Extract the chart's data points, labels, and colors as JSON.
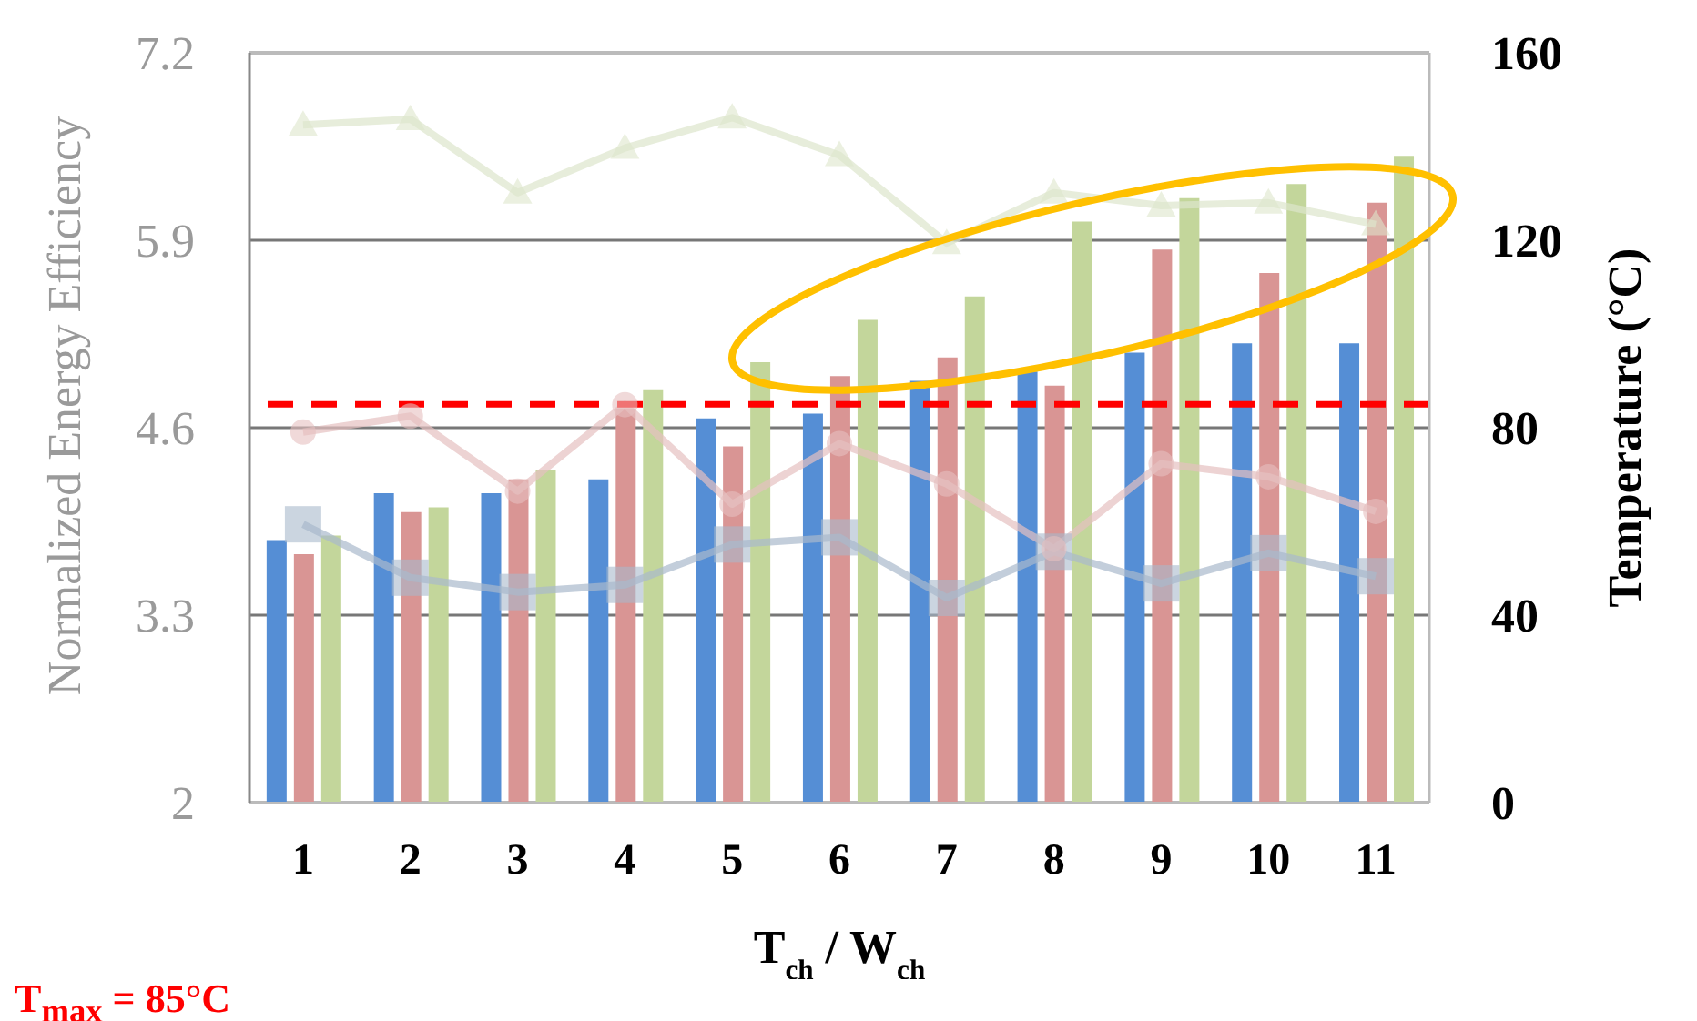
{
  "chart_data": {
    "type": "bar",
    "xlabel": "T$_{ch}$ / W$_{ch}$",
    "ylabel": "Normalized Energy Efficiency",
    "y2label": "Temperature (°C)",
    "categories": [
      "1",
      "2",
      "3",
      "4",
      "5",
      "6",
      "7",
      "8",
      "9",
      "10",
      "11"
    ],
    "series": [
      {
        "axis": "y2",
        "color": "#558ed5",
        "values": [
          56,
          66,
          66,
          69,
          82,
          83,
          90,
          92,
          96,
          98,
          98
        ]
      },
      {
        "axis": "y2",
        "color": "#d99594",
        "values": [
          53,
          62,
          69,
          84,
          76,
          91,
          95,
          89,
          118,
          113,
          128
        ]
      },
      {
        "axis": "y2",
        "color": "#c3d69b",
        "values": [
          57,
          63,
          71,
          88,
          94,
          103,
          108,
          124,
          129,
          132,
          138
        ]
      },
      {
        "type": "line",
        "axis": "y",
        "marker": "square",
        "color": "#a9b9cc",
        "values": [
          3.93,
          3.56,
          3.46,
          3.51,
          3.79,
          3.84,
          3.42,
          3.74,
          3.52,
          3.73,
          3.57
        ]
      },
      {
        "type": "line",
        "axis": "y",
        "marker": "circle",
        "color": "#e6c0c0",
        "values": [
          4.57,
          4.68,
          4.16,
          4.76,
          4.07,
          4.49,
          4.21,
          3.76,
          4.35,
          4.26,
          4.02
        ]
      },
      {
        "type": "line",
        "axis": "y",
        "marker": "triangle",
        "color": "#dde6cc",
        "values": [
          6.7,
          6.74,
          6.23,
          6.54,
          6.75,
          6.49,
          5.88,
          6.23,
          6.14,
          6.16,
          6.01
        ]
      }
    ],
    "ylim": [
      2,
      7.2
    ],
    "yticks": [
      2,
      3.3,
      4.6,
      5.9,
      7.2
    ],
    "y2lim": [
      0,
      160
    ],
    "y2ticks": [
      0,
      40,
      80,
      120,
      160
    ],
    "grid": "y",
    "ref_lines": [
      {
        "axis": "y2",
        "value": 85,
        "color": "#ff0000",
        "line_style": "dashed"
      }
    ],
    "annotations": [
      "T$_{max}$ = 85°C"
    ]
  }
}
